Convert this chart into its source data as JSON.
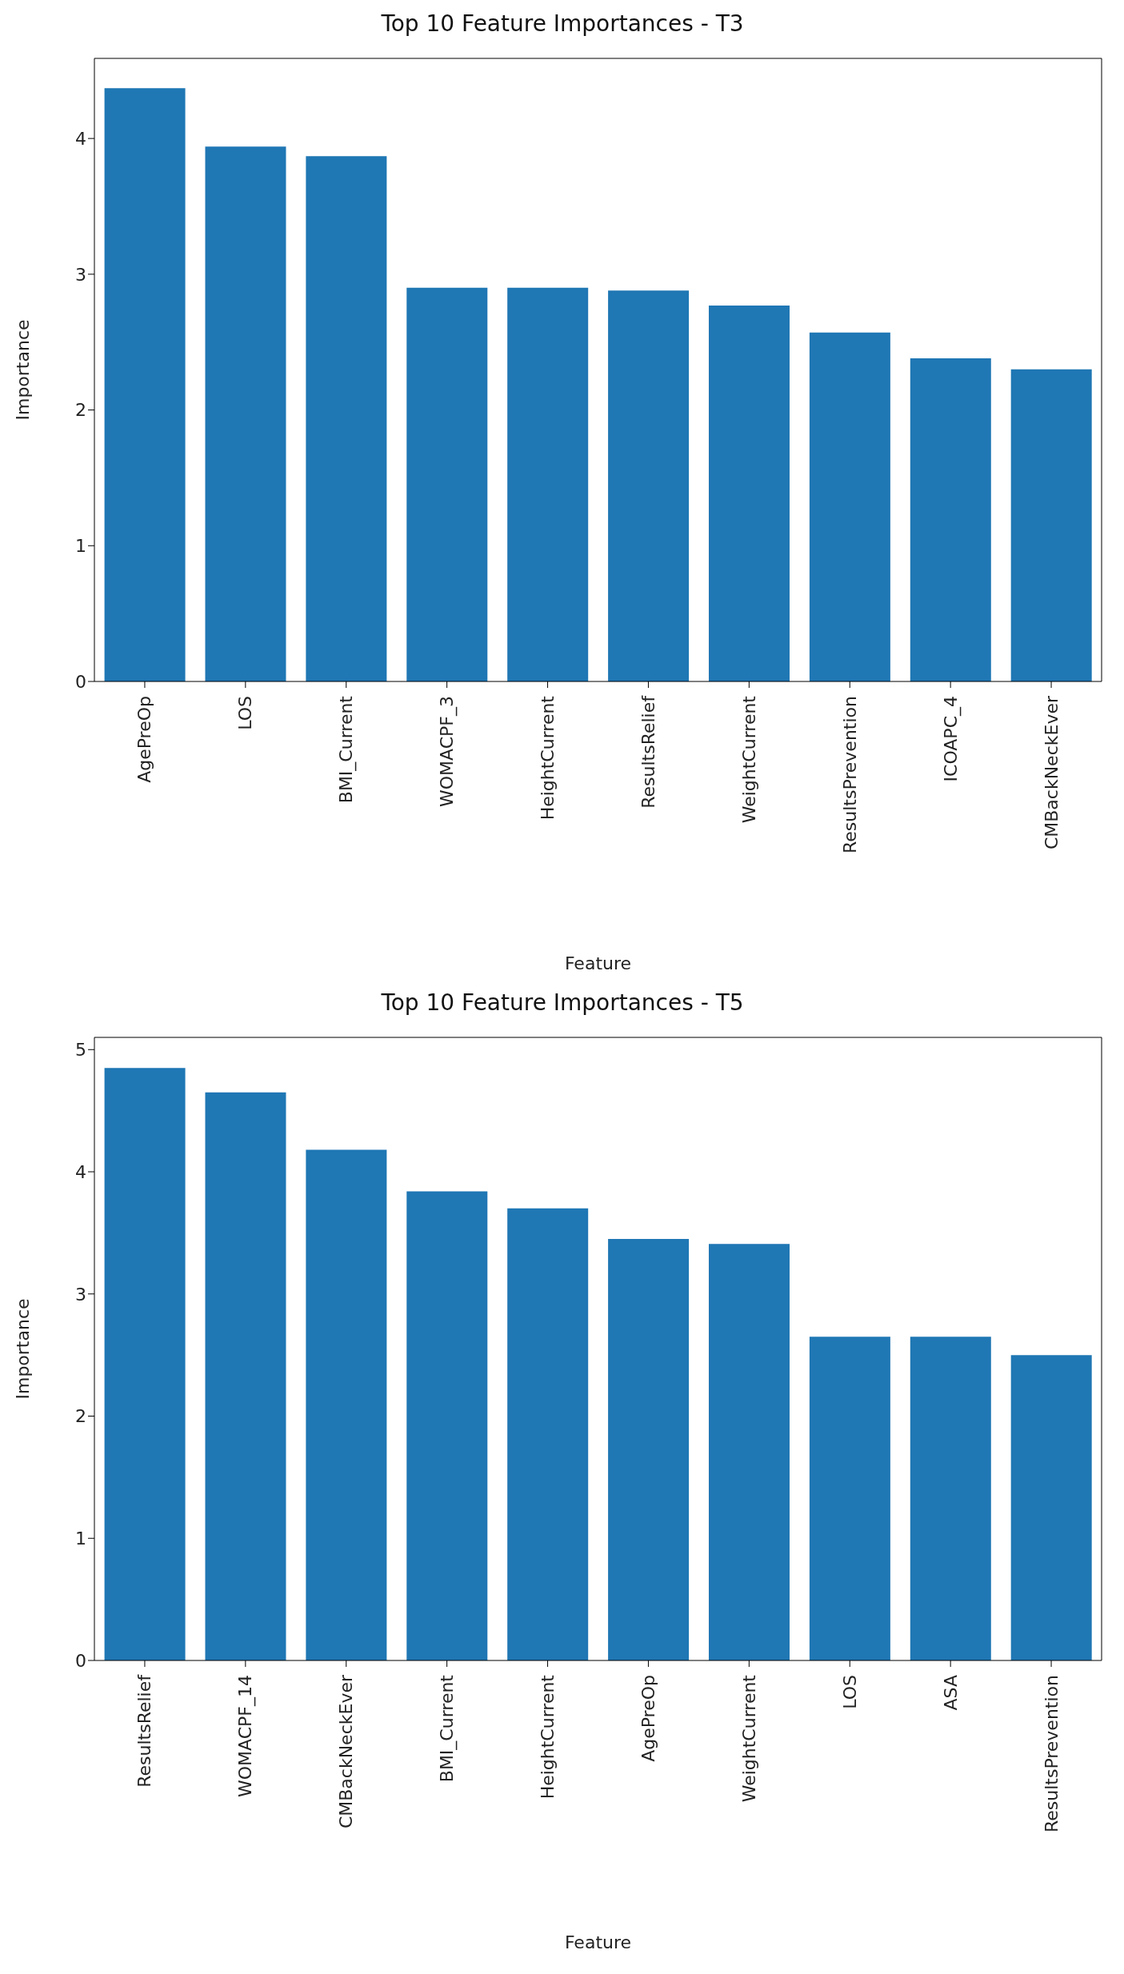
{
  "chart_data": [
    {
      "type": "bar",
      "title": "Top 10 Feature Importances - T3",
      "xlabel": "Feature",
      "ylabel": "Importance",
      "categories": [
        "AgePreOp",
        "LOS",
        "BMI_Current",
        "WOMACPF_3",
        "HeightCurrent",
        "ResultsRelief",
        "WeightCurrent",
        "ResultsPrevention",
        "ICOAPC_4",
        "CMBackNeckEver"
      ],
      "values": [
        4.37,
        3.94,
        3.87,
        2.9,
        2.9,
        2.88,
        2.77,
        2.57,
        2.38,
        2.3
      ],
      "color": "#1f77b4",
      "ylim": [
        0,
        4.59
      ],
      "yticks": [
        0,
        1,
        2,
        3,
        4
      ]
    },
    {
      "type": "bar",
      "title": "Top 10 Feature Importances - T5",
      "xlabel": "Feature",
      "ylabel": "Importance",
      "categories": [
        "ResultsRelief",
        "WOMACPF_14",
        "CMBackNeckEver",
        "BMI_Current",
        "HeightCurrent",
        "AgePreOp",
        "WeightCurrent",
        "LOS",
        "ASA",
        "ResultsPrevention"
      ],
      "values": [
        4.85,
        4.65,
        4.18,
        3.84,
        3.7,
        3.45,
        3.41,
        2.65,
        2.65,
        2.5
      ],
      "color": "#1f77b4",
      "ylim": [
        0,
        5.1
      ],
      "yticks": [
        0,
        1,
        2,
        3,
        4,
        5
      ]
    }
  ]
}
